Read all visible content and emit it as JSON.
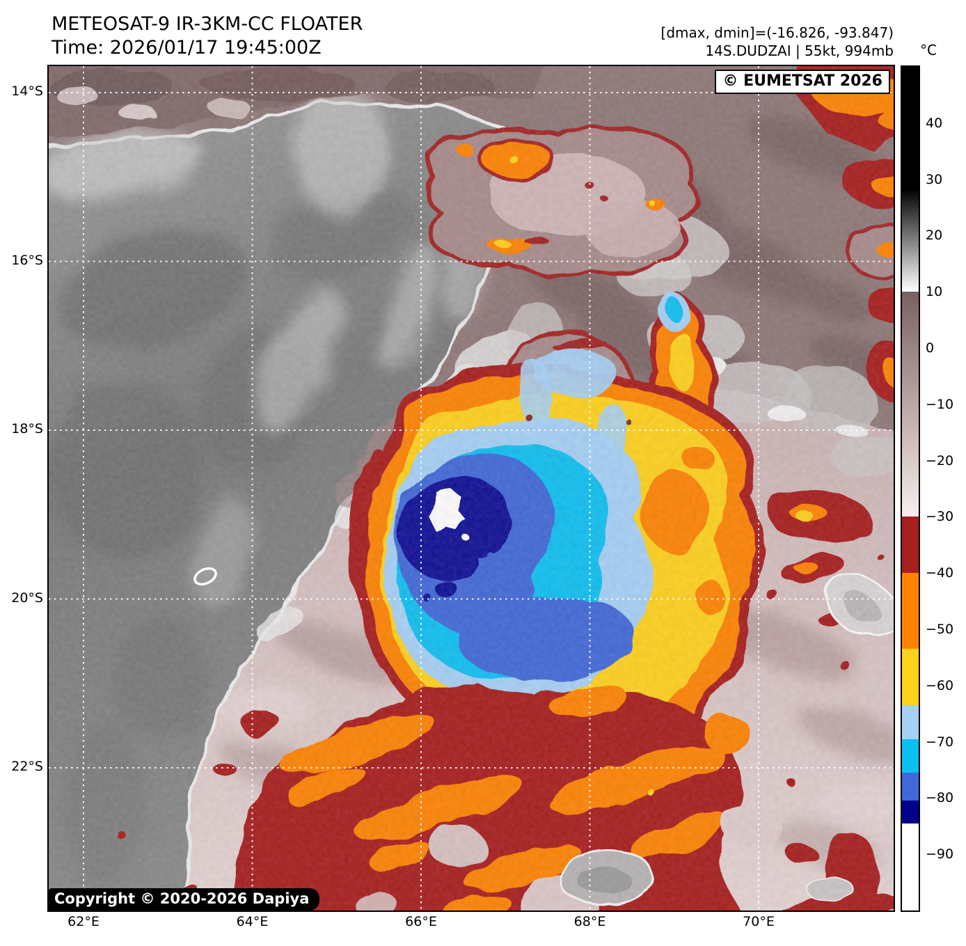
{
  "header": {
    "title": "METEOSAT-9 IR-3KM-CC FLOATER",
    "time": "Time: 2026/01/17 19:45:00Z",
    "dmax_dmin": "[dmax, dmin]=(-16.826, -93.847)",
    "storm_info": "14S.DUDZAI | 55kt, 994mb"
  },
  "plot": {
    "provider_watermark": "© EUMETSAT 2026",
    "copyright_badge": "Copyright © 2020-2026 Dapiya"
  },
  "axes": {
    "lat": {
      "values": [
        14,
        16,
        18,
        20,
        22
      ],
      "labels": [
        "14°S",
        "16°S",
        "18°S",
        "20°S",
        "22°S"
      ]
    },
    "lon": {
      "values": [
        62,
        64,
        66,
        68,
        70
      ],
      "labels": [
        "62°E",
        "64°E",
        "66°E",
        "68°E",
        "70°E"
      ]
    }
  },
  "colorbar": {
    "unit": "°C",
    "scale_max": 50,
    "scale_min": -100,
    "tick_values": [
      40,
      30,
      20,
      10,
      0,
      -10,
      -20,
      -30,
      -40,
      -50,
      -60,
      -70,
      -80,
      -90
    ],
    "segments": [
      {
        "from": 50,
        "to": 28,
        "colors": [
          "#000000"
        ]
      },
      {
        "from": 28,
        "to": 10,
        "colors": [
          "#050505",
          "#ffffff"
        ]
      },
      {
        "from": 10,
        "to": -30,
        "colors": [
          "#7a6060",
          "#f9eded"
        ]
      },
      {
        "from": -30,
        "to": -40,
        "colors": [
          "#a81f1f"
        ]
      },
      {
        "from": -40,
        "to": -53.5,
        "colors": [
          "#ff8300"
        ]
      },
      {
        "from": -53.5,
        "to": -63.5,
        "colors": [
          "#ffd21c"
        ]
      },
      {
        "from": -63.5,
        "to": -69.5,
        "colors": [
          "#a6d1f7"
        ]
      },
      {
        "from": -69.5,
        "to": -75.5,
        "colors": [
          "#0ac0f2"
        ]
      },
      {
        "from": -75.5,
        "to": -80.5,
        "colors": [
          "#3f68d9"
        ]
      },
      {
        "from": -80.5,
        "to": -84.5,
        "colors": [
          "#00008b"
        ]
      },
      {
        "from": -84.5,
        "to": -100,
        "colors": [
          "#ffffff"
        ]
      }
    ]
  }
}
